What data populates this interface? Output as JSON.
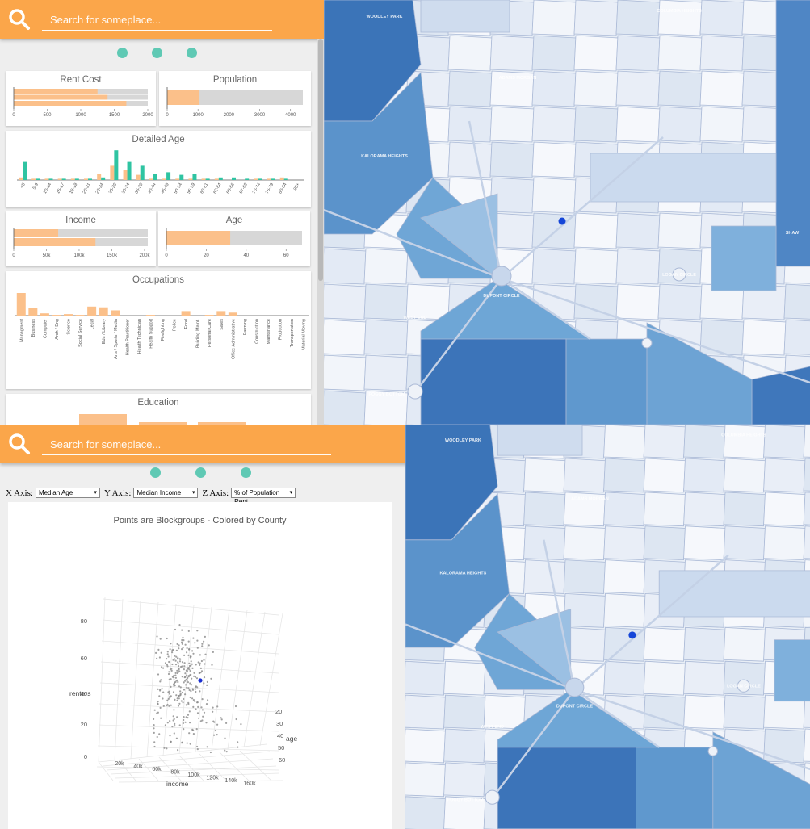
{
  "top": {
    "search": {
      "placeholder": "Search for someplace..."
    },
    "nav_dots": 3,
    "charts": {
      "rent_cost": {
        "title": "Rent Cost",
        "ticks": [
          "0",
          "500",
          "1000",
          "1500",
          "2000"
        ],
        "bars": [
          1250,
          1400,
          1680
        ],
        "max": 2000
      },
      "population": {
        "title": "Population",
        "ticks": [
          "0",
          "1000",
          "2000",
          "3000",
          "4000"
        ],
        "value": 1050,
        "max": 4400
      },
      "detailed_age": {
        "title": "Detailed Age",
        "categories": [
          "<5",
          "5-9",
          "10-14",
          "15-17",
          "18-19",
          "20-21",
          "22-24",
          "25-29",
          "30-34",
          "35-39",
          "40-44",
          "45-49",
          "50-54",
          "55-59",
          "60-61",
          "62-64",
          "65-66",
          "67-69",
          "70-74",
          "75-79",
          "80-84",
          "85+"
        ],
        "orange": [
          2,
          1,
          1,
          1,
          1,
          1,
          5,
          11,
          8,
          4,
          1,
          1,
          1,
          1,
          1,
          1,
          0,
          0,
          1,
          1,
          2,
          0
        ],
        "teal": [
          14,
          1,
          1,
          1,
          1,
          1,
          2,
          23,
          14,
          11,
          5,
          6,
          4,
          5,
          1,
          2,
          2,
          1,
          1,
          1,
          1,
          0
        ]
      },
      "income": {
        "title": "Income",
        "ticks": [
          "0",
          "50k",
          "100k",
          "150k",
          "200k"
        ],
        "bars": [
          68000,
          125000
        ],
        "max": 205000
      },
      "age": {
        "title": "Age",
        "ticks": [
          "0",
          "20",
          "40",
          "60"
        ],
        "value": 32,
        "max": 68
      },
      "occupations": {
        "title": "Occupations",
        "categories": [
          "Managment",
          "Business",
          "Computer",
          "Arch / Eng",
          "Science",
          "Social Service",
          "Legal",
          "Edu / Library",
          "Arts / Sports / Media",
          "Health Practitioner",
          "Health Technician",
          "Health Support",
          "Firefighting",
          "Police",
          "Food",
          "Building Maint.",
          "Personal Care",
          "Sales",
          "Office Administrative",
          "Farming",
          "Construction",
          "Maintenance",
          "Production",
          "Transportation",
          "Material Moving"
        ],
        "values": [
          30,
          10,
          3,
          1,
          2,
          1,
          12,
          11,
          7,
          0,
          0,
          1,
          0,
          0,
          6,
          0,
          1,
          6,
          4,
          0,
          0,
          0,
          0,
          0,
          0
        ]
      },
      "education": {
        "title": "Education"
      }
    }
  },
  "bottom": {
    "search": {
      "placeholder": "Search for someplace..."
    },
    "nav_dots": 3,
    "axes": {
      "x_label": "X Axis:",
      "x_value": "Median Age",
      "y_label": "Y Axis:",
      "y_value": "Median Income",
      "z_label": "Z Axis:",
      "z_value": "% of Population Rent"
    },
    "chart_data": {
      "type": "scatter",
      "title": "Points are Blockgroups - Colored by County",
      "zlabel": "renters",
      "xlabel": "income",
      "ylabel": "age",
      "z_ticks": [
        "80",
        "60",
        "40",
        "20",
        "0"
      ],
      "x_ticks": [
        "20k",
        "40k",
        "60k",
        "80k",
        "100k",
        "120k",
        "140k",
        "160k"
      ],
      "y_ticks": [
        "20",
        "30",
        "40",
        "50",
        "60"
      ],
      "zlim": [
        0,
        90
      ],
      "xlim": [
        0,
        170000
      ],
      "ylim": [
        15,
        65
      ]
    }
  },
  "map": {
    "labels": [
      "WOODLEY PARK",
      "ADAMS MORGAN",
      "COLUMBIA HEIGHTS",
      "KALORAMA HEIGHTS",
      "DUPONT CIRCLE",
      "WEST END",
      "FOGGY BOTTOM",
      "SHAW",
      "LOGAN CIRCLE"
    ],
    "marker_color": "#1546d8"
  },
  "colors": {
    "search_orange": "#fba64a",
    "teal": "#2fc4a2",
    "bar_orange": "#fbc08a",
    "bar_grey": "#d7d7d7"
  }
}
